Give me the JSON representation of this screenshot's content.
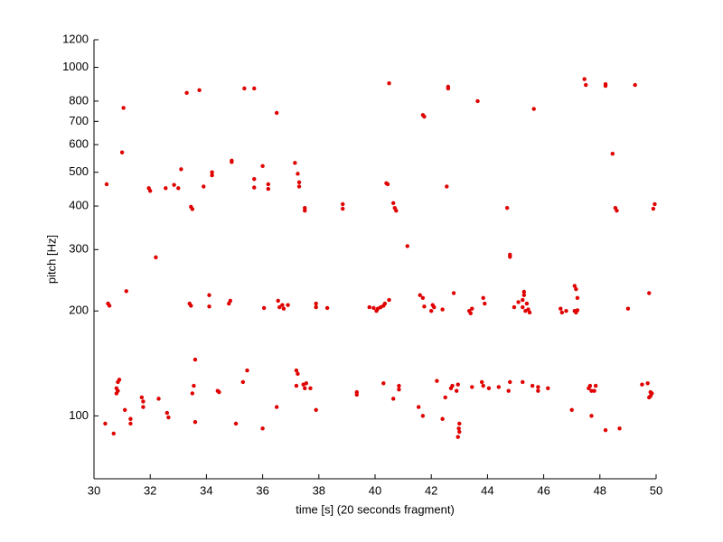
{
  "chart_data": {
    "type": "scatter",
    "xlabel": "time [s] (20 seconds fragment)",
    "ylabel": "pitch [Hz]",
    "xlim": [
      30,
      50
    ],
    "ylim": [
      66,
      1200
    ],
    "xticks": [
      30,
      32,
      34,
      36,
      38,
      40,
      42,
      44,
      46,
      48,
      50
    ],
    "yticks": [
      100,
      200,
      300,
      400,
      500,
      600,
      700,
      800,
      1000,
      1200
    ],
    "ylog": true,
    "grid": false,
    "series": [
      {
        "color": "#e00000",
        "x": [
          30.4,
          30.45,
          30.55,
          30.5,
          30.7,
          30.8,
          30.85,
          30.9,
          30.8,
          30.85,
          31.0,
          31.05,
          31.15,
          31.1,
          31.3,
          31.3,
          31.7,
          31.75,
          31.75,
          31.95,
          32.0,
          32.2,
          32.3,
          32.55,
          32.6,
          32.65,
          32.85,
          33.0,
          33.1,
          33.3,
          33.4,
          33.45,
          33.45,
          33.5,
          33.5,
          33.55,
          33.6,
          33.6,
          33.75,
          33.9,
          34.1,
          34.1,
          34.2,
          34.2,
          34.4,
          34.45,
          34.8,
          34.85,
          34.9,
          34.9,
          35.05,
          35.3,
          35.35,
          35.45,
          35.7,
          35.7,
          35.7,
          36.0,
          36.0,
          36.05,
          36.2,
          36.2,
          36.5,
          36.5,
          36.55,
          36.6,
          36.7,
          36.75,
          36.9,
          37.15,
          37.2,
          37.25,
          37.2,
          37.25,
          37.3,
          37.3,
          37.45,
          37.5,
          37.55,
          37.5,
          37.5,
          37.7,
          37.9,
          37.9,
          37.9,
          38.3,
          38.85,
          38.85,
          39.35,
          39.35,
          39.8,
          39.95,
          40.1,
          40.05,
          40.2,
          40.3,
          40.35,
          40.5,
          40.3,
          40.4,
          40.45,
          40.5,
          40.65,
          40.65,
          40.7,
          40.75,
          40.85,
          40.85,
          41.15,
          41.55,
          41.6,
          41.7,
          41.7,
          41.75,
          41.75,
          41.7,
          42.0,
          42.1,
          42.05,
          42.2,
          42.4,
          42.4,
          42.5,
          42.55,
          42.6,
          42.6,
          42.7,
          42.75,
          42.8,
          42.9,
          42.95,
          43.0,
          42.98,
          42.95,
          43.0,
          43.35,
          43.4,
          43.45,
          43.45,
          43.65,
          43.8,
          43.85,
          43.9,
          43.85,
          44.05,
          44.4,
          44.7,
          44.75,
          44.8,
          44.8,
          44.8,
          44.95,
          45.1,
          45.25,
          45.25,
          45.3,
          45.3,
          45.25,
          45.35,
          45.45,
          45.5,
          45.4,
          45.6,
          45.65,
          45.8,
          45.8,
          46.15,
          46.6,
          46.65,
          46.8,
          47.0,
          47.1,
          47.15,
          47.2,
          47.1,
          47.15,
          47.2,
          47.45,
          47.5,
          47.6,
          47.65,
          47.7,
          47.7,
          47.85,
          47.8,
          48.2,
          48.2,
          48.2,
          48.45,
          48.55,
          48.6,
          48.7,
          49.0,
          49.25,
          49.5,
          49.7,
          49.75,
          49.8,
          49.85,
          49.8,
          49.75,
          49.95,
          49.9
        ],
        "values": [
          95,
          462,
          207,
          210,
          89,
          120,
          125,
          127,
          116,
          118,
          570,
          765,
          228,
          104,
          95,
          98,
          113,
          110,
          106,
          450,
          442,
          285,
          112,
          450,
          102,
          99,
          460,
          450,
          510,
          845,
          210,
          207,
          398,
          392,
          116,
          122,
          145,
          96,
          860,
          455,
          222,
          206,
          490,
          500,
          118,
          117,
          210,
          214,
          540,
          535,
          95,
          125,
          870,
          135,
          870,
          478,
          452,
          521,
          92,
          204,
          462,
          448,
          740,
          106,
          214,
          205,
          208,
          203,
          208,
          532,
          135,
          132,
          122,
          495,
          468,
          455,
          123,
          120,
          124,
          395,
          388,
          120,
          104,
          210,
          205,
          204,
          393,
          405,
          117,
          115,
          205,
          204,
          203,
          200,
          205,
          207,
          210,
          215,
          124,
          465,
          462,
          900,
          112,
          408,
          395,
          388,
          122,
          119,
          307,
          106,
          222,
          218,
          730,
          722,
          206,
          100,
          200,
          205,
          208,
          126,
          98,
          202,
          113,
          455,
          880,
          870,
          120,
          122,
          225,
          118,
          123,
          95,
          92,
          87,
          90,
          200,
          197,
          203,
          121,
          800,
          125,
          122,
          210,
          218,
          120,
          121,
          395,
          118,
          125,
          290,
          286,
          205,
          212,
          125,
          215,
          222,
          227,
          205,
          200,
          202,
          198,
          210,
          122,
          760,
          118,
          121,
          120,
          203,
          198,
          200,
          104,
          200,
          198,
          201,
          236,
          231,
          218,
          925,
          890,
          120,
          122,
          118,
          100,
          122,
          118,
          895,
          885,
          91,
          565,
          395,
          388,
          92,
          203,
          890,
          123,
          124,
          225,
          114,
          116,
          117,
          113,
          405,
          393
        ]
      }
    ]
  }
}
